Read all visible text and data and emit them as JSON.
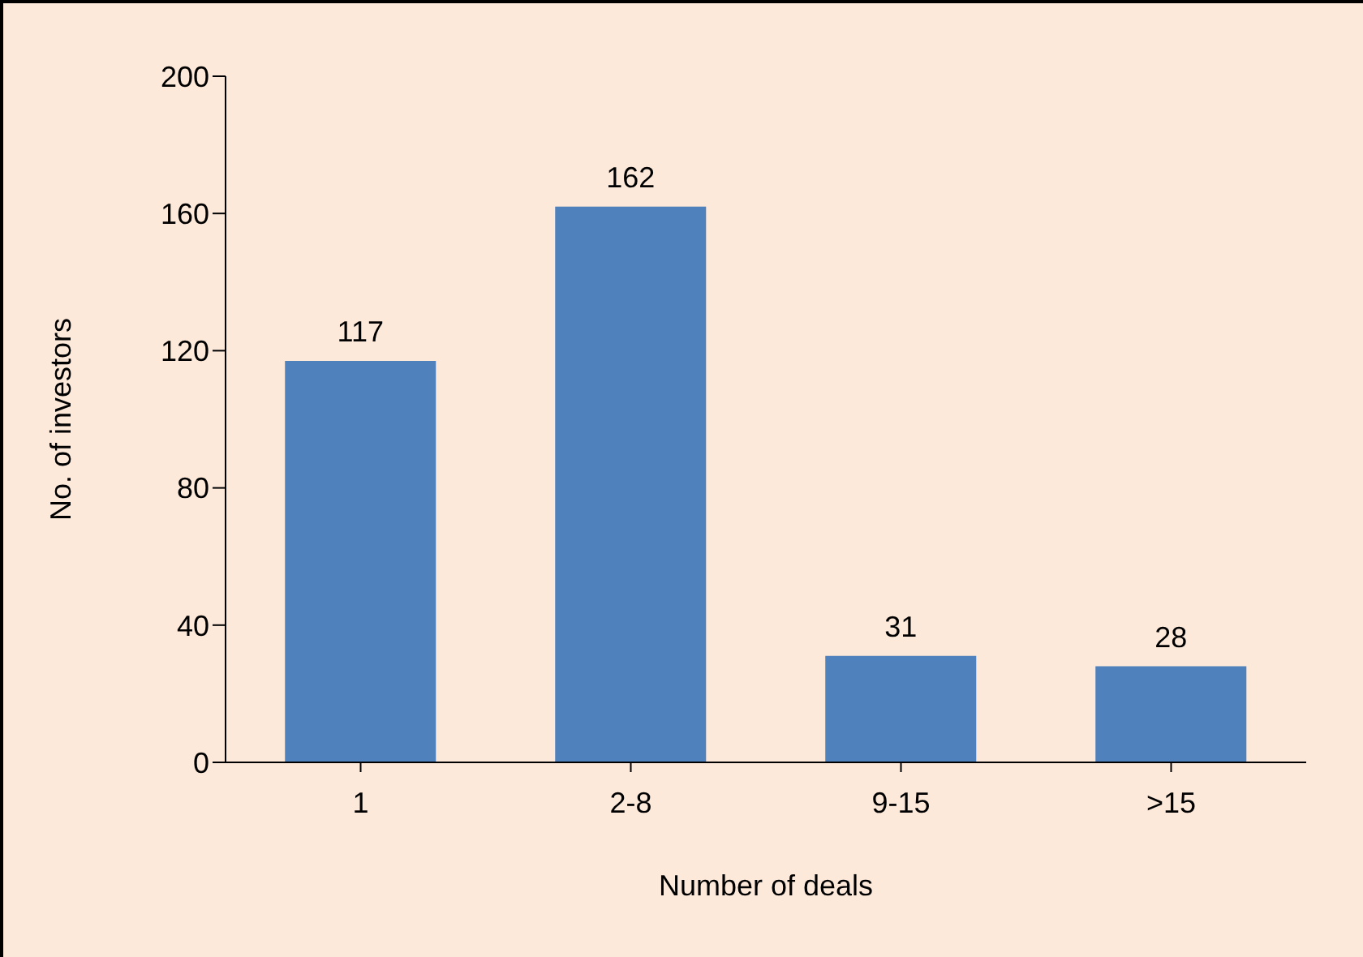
{
  "chart_data": {
    "type": "bar",
    "xlabel": "Number of deals",
    "ylabel": "No. of investors",
    "categories": [
      "1",
      "2-8",
      "9-15",
      ">15"
    ],
    "values": [
      117,
      162,
      31,
      28
    ],
    "color": "#4f81bd",
    "ylim": [
      0,
      200
    ],
    "yticks": [
      0,
      40,
      80,
      120,
      160,
      200
    ],
    "data_labels": true
  }
}
